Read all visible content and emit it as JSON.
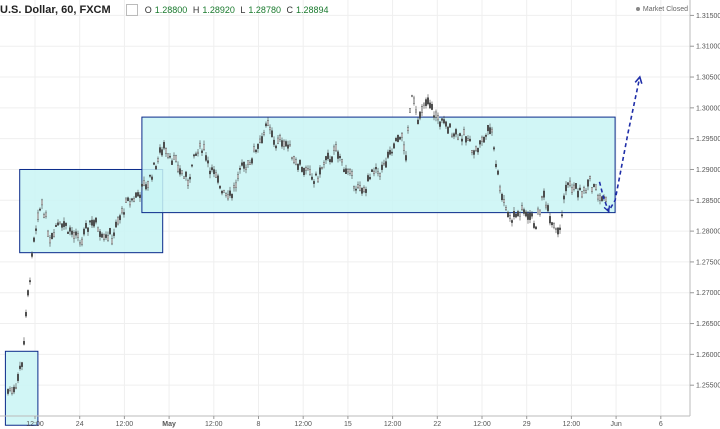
{
  "header": {
    "symbol": "U.S. Dollar, 60, FXCM",
    "o_label": "O",
    "o_value": "1.28800",
    "h_label": "H",
    "h_value": "1.28920",
    "l_label": "L",
    "l_value": "1.28780",
    "c_label": "C",
    "c_value": "1.28894",
    "status": "Market Closed"
  },
  "colors": {
    "box_fill": "#c9f4f4",
    "box_stroke": "#0a2a8a",
    "arrow": "#1f2ea8",
    "grid": "#efefef",
    "candle": "#444444"
  },
  "chart_data": {
    "type": "candlestick",
    "title": "",
    "xlabel": "",
    "ylabel": "",
    "ylim": [
      1.25,
      1.3175
    ],
    "y_ticks": [
      "1.31500",
      "1.31000",
      "1.30500",
      "1.30000",
      "1.29500",
      "1.29000",
      "1.28500",
      "1.28000",
      "1.27500",
      "1.27000",
      "1.26500",
      "1.26000",
      "1.25500"
    ],
    "x_ticks": [
      "12:00",
      "24",
      "12:00",
      "May",
      "12:00",
      "8",
      "12:00",
      "15",
      "12:00",
      "22",
      "12:00",
      "29",
      "12:00",
      "Jun",
      "6"
    ],
    "x_tick_bold": "May",
    "grid": true,
    "price_path": [
      [
        0.0,
        1.254
      ],
      [
        0.03,
        1.255
      ],
      [
        0.055,
        1.259
      ],
      [
        0.08,
        1.271
      ],
      [
        0.1,
        1.278
      ],
      [
        0.13,
        1.285
      ],
      [
        0.16,
        1.279
      ],
      [
        0.2,
        1.282
      ],
      [
        0.24,
        1.28
      ],
      [
        0.28,
        1.278
      ],
      [
        0.32,
        1.282
      ],
      [
        0.36,
        1.28
      ],
      [
        0.4,
        1.279
      ],
      [
        0.45,
        1.284
      ],
      [
        0.5,
        1.286
      ],
      [
        0.54,
        1.288
      ],
      [
        0.57,
        1.291
      ],
      [
        0.6,
        1.294
      ],
      [
        0.63,
        1.292
      ],
      [
        0.66,
        1.29
      ],
      [
        0.69,
        1.288
      ],
      [
        0.72,
        1.292
      ],
      [
        0.75,
        1.294
      ],
      [
        0.78,
        1.29
      ],
      [
        0.82,
        1.287
      ],
      [
        0.86,
        1.286
      ],
      [
        0.9,
        1.29
      ],
      [
        0.94,
        1.292
      ],
      [
        0.97,
        1.295
      ],
      [
        1.0,
        1.297
      ],
      [
        1.03,
        1.294
      ],
      [
        1.06,
        1.295
      ],
      [
        1.1,
        1.292
      ],
      [
        1.14,
        1.29
      ],
      [
        1.18,
        1.288
      ],
      [
        1.22,
        1.291
      ],
      [
        1.26,
        1.293
      ],
      [
        1.3,
        1.29
      ],
      [
        1.33,
        1.288
      ],
      [
        1.36,
        1.286
      ],
      [
        1.4,
        1.289
      ],
      [
        1.44,
        1.29
      ],
      [
        1.48,
        1.293
      ],
      [
        1.51,
        1.296
      ],
      [
        1.53,
        1.292
      ],
      [
        1.555,
        1.303
      ],
      [
        1.58,
        1.298
      ],
      [
        1.61,
        1.301
      ],
      [
        1.64,
        1.299
      ],
      [
        1.68,
        1.297
      ],
      [
        1.72,
        1.296
      ],
      [
        1.76,
        1.295
      ],
      [
        1.8,
        1.293
      ],
      [
        1.83,
        1.295
      ],
      [
        1.86,
        1.297
      ],
      [
        1.88,
        1.29
      ],
      [
        1.9,
        1.286
      ],
      [
        1.93,
        1.282
      ],
      [
        1.97,
        1.283
      ],
      [
        2.0,
        1.283
      ],
      [
        2.03,
        1.281
      ],
      [
        2.06,
        1.286
      ],
      [
        2.09,
        1.282
      ],
      [
        2.12,
        1.28
      ],
      [
        2.15,
        1.288
      ],
      [
        2.18,
        1.287
      ],
      [
        2.21,
        1.286
      ],
      [
        2.24,
        1.288
      ],
      [
        2.27,
        1.286
      ],
      [
        2.3,
        1.2845
      ]
    ],
    "price_path_x_range": [
      0,
      2.3
    ],
    "boxes": [
      {
        "name": "range-box-1",
        "x0": -0.01,
        "x1": 0.115,
        "y0": 1.2485,
        "y1": 1.2605
      },
      {
        "name": "range-box-2",
        "x0": 0.045,
        "x1": 0.595,
        "y0": 1.2765,
        "y1": 1.29
      },
      {
        "name": "range-box-3",
        "x0": 0.515,
        "x1": 2.335,
        "y0": 1.283,
        "y1": 1.2985
      }
    ],
    "forecast_arrow": {
      "points": [
        [
          2.275,
          1.288
        ],
        [
          2.29,
          1.2855
        ],
        [
          2.31,
          1.2832
        ],
        [
          2.335,
          1.285
        ],
        [
          2.385,
          1.296
        ],
        [
          2.43,
          1.305
        ]
      ]
    }
  }
}
